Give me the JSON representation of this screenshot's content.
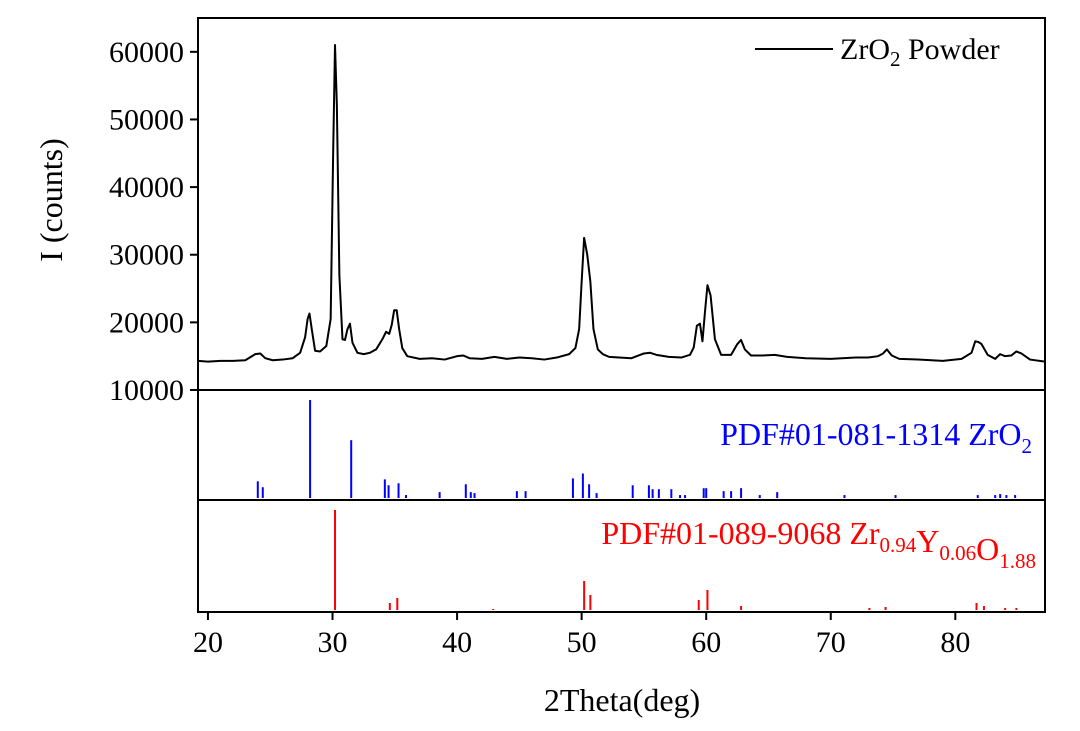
{
  "chart_data": {
    "type": "line",
    "xlabel": "2Theta(deg)",
    "ylabel": "I (counts)",
    "xlim": [
      19.2,
      87.2
    ],
    "x_ticks": [
      20,
      30,
      40,
      50,
      60,
      70,
      80
    ],
    "grid": false,
    "legend": {
      "placement": "top-right",
      "entries": [
        "ZrO2 Powder"
      ]
    },
    "panels": [
      {
        "name": "top",
        "type": "line",
        "ylim": [
          10000,
          65000
        ],
        "y_ticks": [
          10000,
          20000,
          30000,
          40000,
          50000,
          60000
        ],
        "series": [
          {
            "name": "ZrO2 Powder",
            "color": "#000000",
            "x": [
              19.2,
              20,
              21,
              22,
              23,
              23.8,
              24.2,
              24.6,
              25.2,
              26,
              26.8,
              27.4,
              27.8,
              28.0,
              28.15,
              28.35,
              28.6,
              29.0,
              29.5,
              29.85,
              30.05,
              30.2,
              30.35,
              30.55,
              30.8,
              31.0,
              31.2,
              31.4,
              31.6,
              32.0,
              32.5,
              33.0,
              33.5,
              34.0,
              34.3,
              34.55,
              34.75,
              34.95,
              35.15,
              35.35,
              35.6,
              36.0,
              37.0,
              38.0,
              39.0,
              40.0,
              40.5,
              41.0,
              42.0,
              43.0,
              44.0,
              45.0,
              46.0,
              47.0,
              48.0,
              49.0,
              49.5,
              49.8,
              50.0,
              50.2,
              50.45,
              50.7,
              50.95,
              51.3,
              51.7,
              52.2,
              53.0,
              54.0,
              55.0,
              55.5,
              56.0,
              57.0,
              58.0,
              58.7,
              59.0,
              59.25,
              59.5,
              59.7,
              59.9,
              60.1,
              60.35,
              60.7,
              61.2,
              62.0,
              62.5,
              62.8,
              63.1,
              63.6,
              64.5,
              65.5,
              66.5,
              68.0,
              70.0,
              72.0,
              73.0,
              73.8,
              74.2,
              74.5,
              74.9,
              75.5,
              77.0,
              79.0,
              80.5,
              81.3,
              81.6,
              81.85,
              82.1,
              82.6,
              83.2,
              83.6,
              84.0,
              84.5,
              84.9,
              85.3,
              86.0,
              87.2
            ],
            "values": [
              14300,
              14200,
              14300,
              14300,
              14400,
              15300,
              15400,
              14700,
              14400,
              14500,
              14700,
              15500,
              17800,
              20500,
              21300,
              18800,
              15800,
              15700,
              16500,
              20500,
              45000,
              61000,
              52000,
              27000,
              17500,
              17400,
              19000,
              19800,
              17000,
              15500,
              15300,
              15500,
              16000,
              17500,
              18600,
              18300,
              19600,
              21800,
              21800,
              19000,
              16200,
              15000,
              14600,
              14700,
              14500,
              15000,
              15100,
              14700,
              14600,
              14900,
              14600,
              14800,
              14700,
              14500,
              14800,
              15300,
              16200,
              19000,
              26000,
              32500,
              30000,
              26000,
              19000,
              16000,
              15300,
              14900,
              14800,
              14700,
              15400,
              15500,
              15200,
              14900,
              14800,
              15200,
              16300,
              19500,
              19800,
              17200,
              21500,
              25500,
              24000,
              17500,
              15200,
              15200,
              16800,
              17400,
              16000,
              15100,
              15100,
              15200,
              14900,
              14700,
              14600,
              14800,
              14800,
              15000,
              15400,
              16000,
              15100,
              14600,
              14500,
              14300,
              14600,
              15500,
              17200,
              17100,
              16800,
              15200,
              14600,
              15300,
              15000,
              15100,
              15700,
              15400,
              14500,
              14200
            ]
          }
        ]
      },
      {
        "name": "middle",
        "type": "bar",
        "label_text": "PDF#01-081-1314 ZrO",
        "label_sub": "2",
        "color": "#0000ff",
        "series": [
          {
            "name": "PDF#01-081-1314 ZrO2",
            "x": [
              24.0,
              24.4,
              28.2,
              31.5,
              34.2,
              34.5,
              35.3,
              35.9,
              38.6,
              40.7,
              41.1,
              41.4,
              44.8,
              45.5,
              49.3,
              50.1,
              50.6,
              51.2,
              54.1,
              55.4,
              55.7,
              56.2,
              57.2,
              57.9,
              58.3,
              59.8,
              60.0,
              61.4,
              62.0,
              62.8,
              64.3,
              65.7,
              71.1,
              75.2,
              81.8,
              83.2,
              83.6,
              84.1,
              84.8
            ],
            "values": [
              17,
              11,
              100,
              59,
              19,
              13,
              15,
              3,
              6,
              14,
              6,
              5,
              7,
              7,
              20,
              25,
              14,
              5,
              13,
              13,
              9,
              9,
              9,
              3,
              3,
              10,
              10,
              7,
              7,
              10,
              3,
              6,
              3,
              3,
              3,
              3,
              4,
              3,
              3
            ]
          }
        ]
      },
      {
        "name": "bottom",
        "type": "bar",
        "label_text": "PDF#01-089-9068 Zr",
        "label_parts": [
          {
            "text": "Zr",
            "sub": "0.94"
          },
          {
            "text": "Y",
            "sub": "0.06"
          },
          {
            "text": "O",
            "sub": "1.88"
          }
        ],
        "label_prefix": "PDF#01-089-9068 ",
        "color": "#ff0000",
        "series": [
          {
            "name": "PDF#01-089-9068 Zr0.94Y0.06O1.88",
            "x": [
              30.2,
              34.6,
              35.2,
              42.9,
              50.2,
              50.7,
              59.4,
              60.1,
              62.8,
              73.1,
              74.4,
              81.7,
              82.3,
              84.0,
              84.9
            ],
            "values": [
              100,
              7,
              12,
              1,
              29,
              15,
              10,
              20,
              4,
              2,
              3,
              7,
              4,
              2,
              2
            ]
          }
        ]
      }
    ]
  }
}
